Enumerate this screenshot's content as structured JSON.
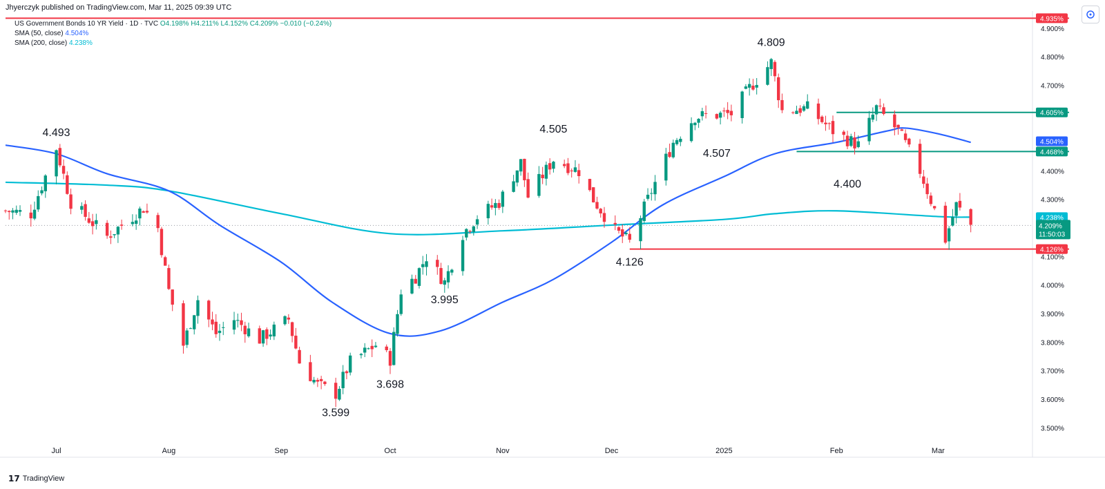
{
  "header": {
    "published": "Jhyerczyk published on TradingView.com, Mar 11, 2025 09:39 UTC",
    "symbol": "US Government Bonds 10 YR Yield · 1D · TVC",
    "ohlc": "O4.198% H4.211% L4.152% C4.209% −0.010 (−0.24%)",
    "sma50_label": "SMA (50, close)",
    "sma50_value": "4.504%",
    "sma200_label": "SMA (200, close)",
    "sma200_value": "4.238%"
  },
  "footer": {
    "brand": "TradingView"
  },
  "colors": {
    "up": "#089981",
    "down": "#f23645",
    "sma50": "#2962ff",
    "sma200": "#00bcd4",
    "support": "#f23645",
    "resistance": "#089981"
  },
  "chart_data": {
    "type": "candlestick",
    "ylim": [
      3.45,
      4.96
    ],
    "y_ticks": [
      "4.900%",
      "4.800%",
      "4.700%",
      "4.600%",
      "4.500%",
      "4.400%",
      "4.300%",
      "4.200%",
      "4.100%",
      "4.000%",
      "3.900%",
      "3.800%",
      "3.700%",
      "3.600%",
      "3.500%"
    ],
    "x_ticks": [
      {
        "label": "Jul",
        "date": "2024-07-01"
      },
      {
        "label": "Aug",
        "date": "2024-08-01"
      },
      {
        "label": "Sep",
        "date": "2024-09-01"
      },
      {
        "label": "Oct",
        "date": "2024-10-01"
      },
      {
        "label": "Nov",
        "date": "2024-11-01"
      },
      {
        "label": "Dec",
        "date": "2024-12-01"
      },
      {
        "label": "2025",
        "date": "2025-01-01"
      },
      {
        "label": "Feb",
        "date": "2025-02-01"
      },
      {
        "label": "Mar",
        "date": "2025-03-01"
      }
    ],
    "x_start": "2024-06-17",
    "x_end": "2025-03-27",
    "path": [
      [
        "2024-06-17",
        4.26
      ],
      [
        "2024-06-24",
        4.25
      ],
      [
        "2024-07-01",
        4.48
      ],
      [
        "2024-07-05",
        4.29
      ],
      [
        "2024-07-15",
        4.17
      ],
      [
        "2024-07-25",
        4.27
      ],
      [
        "2024-07-29",
        4.2
      ],
      [
        "2024-08-01",
        3.98
      ],
      [
        "2024-08-05",
        3.79
      ],
      [
        "2024-08-09",
        3.95
      ],
      [
        "2024-08-14",
        3.83
      ],
      [
        "2024-08-19",
        3.88
      ],
      [
        "2024-08-26",
        3.81
      ],
      [
        "2024-09-03",
        3.88
      ],
      [
        "2024-09-06",
        3.73
      ],
      [
        "2024-09-11",
        3.65
      ],
      [
        "2024-09-16",
        3.62
      ],
      [
        "2024-09-20",
        3.73
      ],
      [
        "2024-09-27",
        3.79
      ],
      [
        "2024-10-01",
        3.74
      ],
      [
        "2024-10-04",
        3.98
      ],
      [
        "2024-10-08",
        4.03
      ],
      [
        "2024-10-11",
        4.1
      ],
      [
        "2024-10-16",
        4.01
      ],
      [
        "2024-10-21",
        4.18
      ],
      [
        "2024-10-25",
        4.24
      ],
      [
        "2024-10-31",
        4.29
      ],
      [
        "2024-11-06",
        4.43
      ],
      [
        "2024-11-08",
        4.31
      ],
      [
        "2024-11-15",
        4.44
      ],
      [
        "2024-11-22",
        4.4
      ],
      [
        "2024-11-26",
        4.3
      ],
      [
        "2024-12-02",
        4.19
      ],
      [
        "2024-12-06",
        4.15
      ],
      [
        "2024-12-12",
        4.33
      ],
      [
        "2024-12-18",
        4.5
      ],
      [
        "2024-12-24",
        4.59
      ],
      [
        "2025-01-03",
        4.6
      ],
      [
        "2025-01-08",
        4.69
      ],
      [
        "2025-01-14",
        4.78
      ],
      [
        "2025-01-17",
        4.61
      ],
      [
        "2025-01-24",
        4.62
      ],
      [
        "2025-01-31",
        4.54
      ],
      [
        "2025-02-04",
        4.51
      ],
      [
        "2025-02-07",
        4.49
      ],
      [
        "2025-02-12",
        4.62
      ],
      [
        "2025-02-18",
        4.54
      ],
      [
        "2025-02-24",
        4.4
      ],
      [
        "2025-03-03",
        4.16
      ],
      [
        "2025-03-06",
        4.28
      ],
      [
        "2025-03-10",
        4.21
      ]
    ],
    "annotations": [
      {
        "text": "4.493",
        "date": "2024-07-01",
        "y": 4.493,
        "pos": "above"
      },
      {
        "text": "3.599",
        "date": "2024-09-16",
        "y": 3.599,
        "pos": "below"
      },
      {
        "text": "3.698",
        "date": "2024-10-01",
        "y": 3.698,
        "pos": "below"
      },
      {
        "text": "3.995",
        "date": "2024-10-16",
        "y": 3.995,
        "pos": "below"
      },
      {
        "text": "4.505",
        "date": "2024-11-15",
        "y": 4.505,
        "pos": "above"
      },
      {
        "text": "4.126",
        "date": "2024-12-06",
        "y": 4.126,
        "pos": "below"
      },
      {
        "text": "4.507",
        "date": "2024-12-30",
        "y": 4.507,
        "pos": "below"
      },
      {
        "text": "4.809",
        "date": "2025-01-14",
        "y": 4.809,
        "pos": "above"
      },
      {
        "text": "4.400",
        "date": "2025-02-04",
        "y": 4.4,
        "pos": "below"
      }
    ],
    "horizontal_levels": [
      {
        "value": 4.935,
        "label": "4.935%",
        "color": "#f23645",
        "from": "2024-06-17"
      },
      {
        "value": 4.605,
        "label": "4.605%",
        "color": "#089981",
        "from": "2025-02-01"
      },
      {
        "value": 4.468,
        "label": "4.468%",
        "color": "#089981",
        "from": "2025-01-21"
      },
      {
        "value": 4.126,
        "label": "4.126%",
        "color": "#f23645",
        "from": "2024-12-06"
      }
    ],
    "sma50": [
      [
        "2024-06-17",
        4.49
      ],
      [
        "2024-07-01",
        4.46
      ],
      [
        "2024-07-15",
        4.39
      ],
      [
        "2024-08-01",
        4.33
      ],
      [
        "2024-08-15",
        4.21
      ],
      [
        "2024-09-01",
        4.08
      ],
      [
        "2024-09-15",
        3.94
      ],
      [
        "2024-10-01",
        3.83
      ],
      [
        "2024-10-15",
        3.84
      ],
      [
        "2024-11-01",
        3.94
      ],
      [
        "2024-11-15",
        4.02
      ],
      [
        "2024-12-01",
        4.15
      ],
      [
        "2024-12-15",
        4.28
      ],
      [
        "2025-01-01",
        4.38
      ],
      [
        "2025-01-15",
        4.46
      ],
      [
        "2025-02-01",
        4.5
      ],
      [
        "2025-02-15",
        4.54
      ],
      [
        "2025-02-20",
        4.55
      ],
      [
        "2025-03-01",
        4.53
      ],
      [
        "2025-03-10",
        4.5
      ]
    ],
    "sma200": [
      [
        "2024-06-17",
        4.36
      ],
      [
        "2024-07-15",
        4.35
      ],
      [
        "2024-08-01",
        4.33
      ],
      [
        "2024-09-01",
        4.25
      ],
      [
        "2024-10-01",
        4.18
      ],
      [
        "2024-11-01",
        4.19
      ],
      [
        "2024-12-01",
        4.21
      ],
      [
        "2025-01-01",
        4.23
      ],
      [
        "2025-01-15",
        4.25
      ],
      [
        "2025-02-01",
        4.26
      ],
      [
        "2025-03-01",
        4.24
      ],
      [
        "2025-03-10",
        4.238
      ]
    ],
    "last_price": {
      "value": 4.209,
      "label": "4.209%",
      "countdown": "11:50:03"
    },
    "sma50_last": {
      "value": 4.504,
      "label": "4.504%"
    },
    "sma200_last": {
      "value": 4.238,
      "label": "4.238%"
    }
  }
}
